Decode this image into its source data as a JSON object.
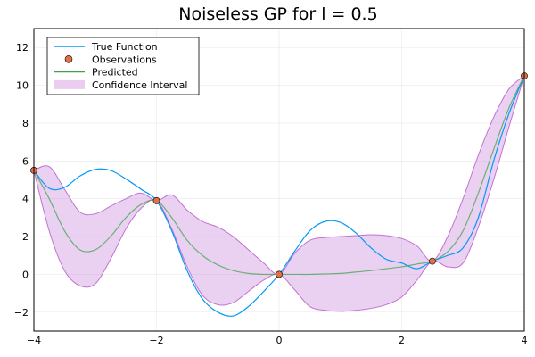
{
  "chart_data": {
    "type": "line",
    "title": "Noiseless GP for l = 0.5",
    "xlabel": "",
    "ylabel": "",
    "xlim": [
      -4,
      4
    ],
    "ylim": [
      -3,
      13
    ],
    "xticks": [
      -4,
      -2,
      0,
      2,
      4
    ],
    "yticks": [
      -2,
      0,
      2,
      4,
      6,
      8,
      10,
      12
    ],
    "grid": true,
    "legend_position": "top-left",
    "colors": {
      "true_function": "#009af9",
      "observations_fill": "#e26f46",
      "predicted": "#3da44d",
      "confidence": "#c271d2"
    },
    "series": [
      {
        "name": "True Function",
        "kind": "line",
        "x": [
          -4.0,
          -3.75,
          -3.5,
          -3.25,
          -3.0,
          -2.75,
          -2.5,
          -2.25,
          -2.0,
          -1.75,
          -1.5,
          -1.25,
          -1.0,
          -0.75,
          -0.5,
          -0.25,
          0.0,
          0.25,
          0.5,
          0.75,
          1.0,
          1.25,
          1.5,
          1.75,
          2.0,
          2.25,
          2.5,
          2.75,
          3.0,
          3.25,
          3.5,
          3.75,
          4.0
        ],
        "y": [
          5.5,
          4.55,
          4.6,
          5.2,
          5.55,
          5.5,
          5.05,
          4.5,
          3.9,
          2.3,
          0.2,
          -1.3,
          -2.0,
          -2.2,
          -1.7,
          -0.9,
          0.0,
          1.2,
          2.3,
          2.8,
          2.75,
          2.2,
          1.4,
          0.8,
          0.6,
          0.3,
          0.7,
          1.0,
          1.4,
          3.0,
          6.0,
          8.5,
          10.5
        ]
      },
      {
        "name": "Observations",
        "kind": "scatter",
        "x": [
          -4.0,
          -2.0,
          0.0,
          2.5,
          4.0
        ],
        "y": [
          5.5,
          3.9,
          0.0,
          0.7,
          10.5
        ]
      },
      {
        "name": "Predicted",
        "kind": "line",
        "x": [
          -4.0,
          -3.75,
          -3.5,
          -3.25,
          -3.0,
          -2.75,
          -2.5,
          -2.25,
          -2.0,
          -1.75,
          -1.5,
          -1.25,
          -1.0,
          -0.75,
          -0.5,
          -0.25,
          0.0,
          0.25,
          0.5,
          0.75,
          1.0,
          1.25,
          1.5,
          1.75,
          2.0,
          2.25,
          2.5,
          2.75,
          3.0,
          3.25,
          3.5,
          3.75,
          4.0
        ],
        "y": [
          5.5,
          4.0,
          2.3,
          1.3,
          1.3,
          2.0,
          3.0,
          3.7,
          3.9,
          3.0,
          1.8,
          1.0,
          0.5,
          0.2,
          0.05,
          0.0,
          0.0,
          0.0,
          0.0,
          0.02,
          0.05,
          0.12,
          0.2,
          0.3,
          0.4,
          0.55,
          0.7,
          1.2,
          2.3,
          4.3,
          6.6,
          8.8,
          10.5
        ]
      },
      {
        "name": "Confidence Interval",
        "kind": "band",
        "x": [
          -4.0,
          -3.75,
          -3.5,
          -3.25,
          -3.0,
          -2.75,
          -2.5,
          -2.25,
          -2.0,
          -1.75,
          -1.5,
          -1.25,
          -1.0,
          -0.75,
          -0.5,
          -0.25,
          0.0,
          0.25,
          0.5,
          0.75,
          1.0,
          1.25,
          1.5,
          1.75,
          2.0,
          2.25,
          2.5,
          2.75,
          3.0,
          3.25,
          3.5,
          3.75,
          4.0
        ],
        "lower": [
          5.5,
          2.3,
          0.2,
          -0.6,
          -0.5,
          0.8,
          2.4,
          3.5,
          3.9,
          2.4,
          0.4,
          -1.1,
          -1.6,
          -1.5,
          -0.9,
          -0.3,
          0.0,
          -0.8,
          -1.7,
          -1.9,
          -1.95,
          -1.9,
          -1.8,
          -1.6,
          -1.2,
          -0.3,
          0.7,
          0.4,
          0.6,
          2.5,
          5.0,
          7.8,
          10.5
        ],
        "upper": [
          5.5,
          5.7,
          4.5,
          3.3,
          3.2,
          3.6,
          4.0,
          4.3,
          3.9,
          4.2,
          3.4,
          2.8,
          2.5,
          2.0,
          1.3,
          0.6,
          0.0,
          1.1,
          1.8,
          1.95,
          2.0,
          2.05,
          2.1,
          2.05,
          1.9,
          1.5,
          0.7,
          2.0,
          4.0,
          6.3,
          8.3,
          9.8,
          10.5
        ]
      }
    ]
  }
}
